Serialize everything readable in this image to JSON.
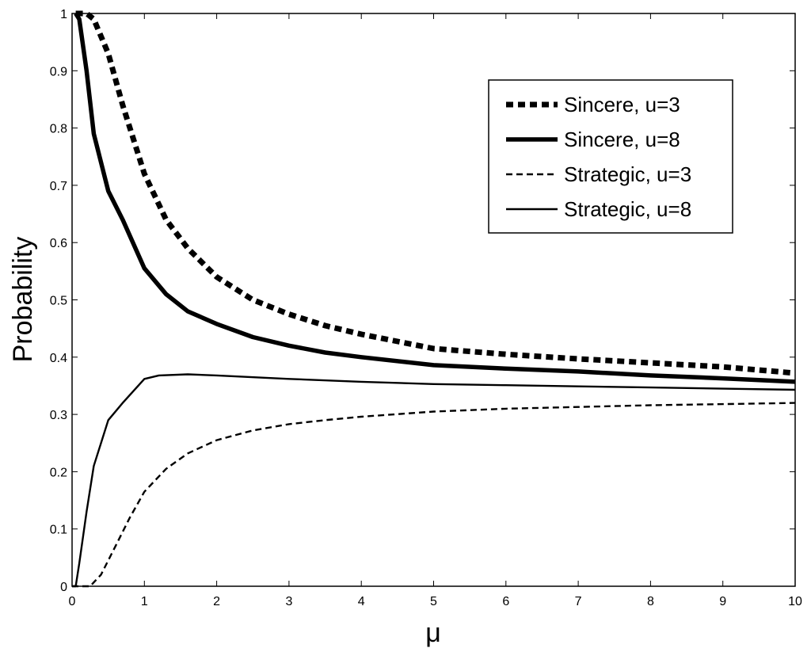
{
  "chart_data": {
    "type": "line",
    "title": "",
    "xlabel": "μ",
    "ylabel": "Probability",
    "xlim": [
      0,
      10
    ],
    "ylim": [
      0,
      1
    ],
    "xticks": [
      0,
      1,
      2,
      3,
      4,
      5,
      6,
      7,
      8,
      9,
      10
    ],
    "yticks": [
      0,
      0.1,
      0.2,
      0.3,
      0.4,
      0.5,
      0.6,
      0.7,
      0.8,
      0.9,
      1
    ],
    "ytick_labels": [
      "0",
      "0.1",
      "0.2",
      "0.3",
      "0.4",
      "0.5",
      "0.6",
      "0.7",
      "0.8",
      "0.9",
      "1"
    ],
    "grid": false,
    "legend_position": "top-right",
    "series": [
      {
        "name": "Sincere, u=3",
        "style": "dashed-thick",
        "color": "#000000",
        "x": [
          0.05,
          0.2,
          0.3,
          0.5,
          0.7,
          1.0,
          1.3,
          1.6,
          2.0,
          2.5,
          3.0,
          3.5,
          4.0,
          5.0,
          6.0,
          7.0,
          8.0,
          9.0,
          10.0
        ],
        "y": [
          1.0,
          1.0,
          0.99,
          0.93,
          0.84,
          0.72,
          0.64,
          0.59,
          0.54,
          0.5,
          0.475,
          0.455,
          0.44,
          0.415,
          0.405,
          0.397,
          0.39,
          0.383,
          0.372
        ]
      },
      {
        "name": "Sincere, u=8",
        "style": "solid-thick",
        "color": "#000000",
        "x": [
          0.05,
          0.1,
          0.2,
          0.3,
          0.5,
          0.7,
          1.0,
          1.3,
          1.6,
          2.0,
          2.5,
          3.0,
          3.5,
          4.0,
          5.0,
          6.0,
          7.0,
          8.0,
          9.0,
          10.0
        ],
        "y": [
          1.0,
          0.99,
          0.9,
          0.79,
          0.69,
          0.64,
          0.555,
          0.51,
          0.48,
          0.458,
          0.435,
          0.42,
          0.408,
          0.4,
          0.386,
          0.38,
          0.375,
          0.368,
          0.363,
          0.357
        ]
      },
      {
        "name": "Strategic, u=3",
        "style": "dashed-thin",
        "color": "#000000",
        "x": [
          0.0,
          0.25,
          0.4,
          0.6,
          0.8,
          1.0,
          1.3,
          1.6,
          2.0,
          2.5,
          3.0,
          3.5,
          4.0,
          5.0,
          6.0,
          7.0,
          8.0,
          9.0,
          10.0
        ],
        "y": [
          0.0,
          0.0,
          0.02,
          0.07,
          0.12,
          0.165,
          0.205,
          0.232,
          0.255,
          0.272,
          0.283,
          0.29,
          0.296,
          0.305,
          0.31,
          0.313,
          0.316,
          0.318,
          0.32
        ]
      },
      {
        "name": "Strategic, u=8",
        "style": "solid-thin",
        "color": "#000000",
        "x": [
          0.0,
          0.05,
          0.1,
          0.2,
          0.3,
          0.5,
          0.7,
          1.0,
          1.2,
          1.6,
          2.0,
          3.0,
          4.0,
          5.0,
          6.0,
          7.0,
          8.0,
          9.0,
          10.0
        ],
        "y": [
          0.0,
          0.0,
          0.04,
          0.13,
          0.21,
          0.29,
          0.32,
          0.362,
          0.368,
          0.37,
          0.368,
          0.362,
          0.357,
          0.353,
          0.351,
          0.349,
          0.347,
          0.345,
          0.343
        ]
      }
    ]
  }
}
